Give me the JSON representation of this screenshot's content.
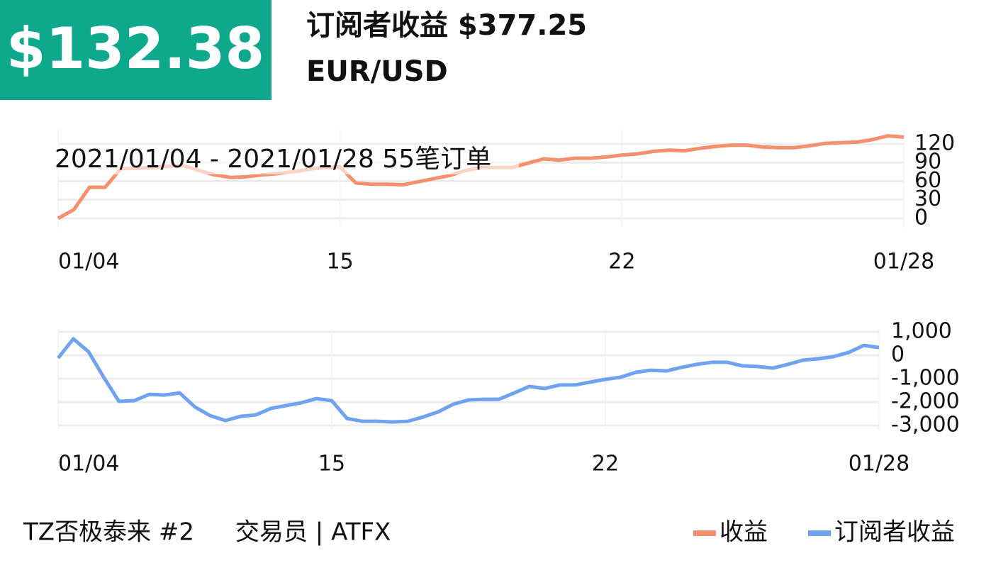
{
  "header": {
    "value": "$132.38",
    "title": "订阅者收益 $377.25",
    "subtitle": "EUR/USD"
  },
  "chart_data": [
    {
      "type": "line",
      "annotation": "2021/01/04 - 2021/01/28  55笔订单",
      "categories": [
        "01/04",
        null,
        null,
        null,
        null,
        null,
        null,
        null,
        null,
        null,
        null,
        null,
        null,
        null,
        null,
        null,
        null,
        null,
        "15",
        null,
        null,
        null,
        null,
        null,
        null,
        null,
        null,
        null,
        null,
        null,
        null,
        null,
        null,
        null,
        null,
        null,
        "22",
        null,
        null,
        null,
        null,
        null,
        null,
        null,
        null,
        null,
        null,
        null,
        null,
        null,
        null,
        null,
        null,
        null,
        "01/28"
      ],
      "series": [
        {
          "name": "收益",
          "color": "#f4906b",
          "values": [
            0,
            14,
            50,
            50,
            80,
            81,
            82,
            84,
            85,
            77,
            70,
            66,
            67,
            70,
            72,
            75,
            79,
            82,
            83,
            57,
            55,
            55,
            54,
            59,
            64,
            69,
            77,
            82,
            82,
            82,
            89,
            96,
            94,
            97,
            97,
            99,
            102,
            104,
            108,
            110,
            109,
            113,
            116,
            118,
            118,
            115,
            114,
            114,
            117,
            121,
            122,
            123,
            127,
            133,
            131
          ]
        }
      ],
      "ylim": [
        -15,
        140
      ],
      "yticks": [
        120,
        90,
        60,
        30,
        0
      ],
      "grid": true
    },
    {
      "type": "line",
      "categories": [
        "01/04",
        null,
        null,
        null,
        null,
        null,
        null,
        null,
        null,
        null,
        null,
        null,
        null,
        null,
        null,
        null,
        null,
        null,
        "15",
        null,
        null,
        null,
        null,
        null,
        null,
        null,
        null,
        null,
        null,
        null,
        null,
        null,
        null,
        null,
        null,
        null,
        "22",
        null,
        null,
        null,
        null,
        null,
        null,
        null,
        null,
        null,
        null,
        null,
        null,
        null,
        null,
        null,
        null,
        null,
        "01/28"
      ],
      "series": [
        {
          "name": "订阅者收益",
          "color": "#6fa3ef",
          "values": [
            -120,
            700,
            150,
            -940,
            -1970,
            -1940,
            -1670,
            -1700,
            -1610,
            -2210,
            -2580,
            -2790,
            -2610,
            -2550,
            -2270,
            -2150,
            -2030,
            -1850,
            -1940,
            -2700,
            -2820,
            -2820,
            -2850,
            -2820,
            -2640,
            -2420,
            -2090,
            -1910,
            -1880,
            -1880,
            -1610,
            -1330,
            -1420,
            -1270,
            -1270,
            -1150,
            -1030,
            -940,
            -730,
            -640,
            -670,
            -520,
            -390,
            -300,
            -300,
            -450,
            -480,
            -550,
            -390,
            -210,
            -150,
            -60,
            120,
            420,
            330
          ]
        }
      ],
      "ylim": [
        -3150,
        1000
      ],
      "yticks": [
        {
          "value": 1000,
          "label": "1,000"
        },
        0,
        {
          "value": -1000,
          "label": "-1,000"
        },
        {
          "value": -2000,
          "label": "-2,000"
        },
        {
          "value": -3000,
          "label": "-3,000"
        }
      ],
      "grid": true
    }
  ],
  "footer": {
    "name": "TZ否极泰来 #2",
    "role": "交易员 | ATFX"
  }
}
